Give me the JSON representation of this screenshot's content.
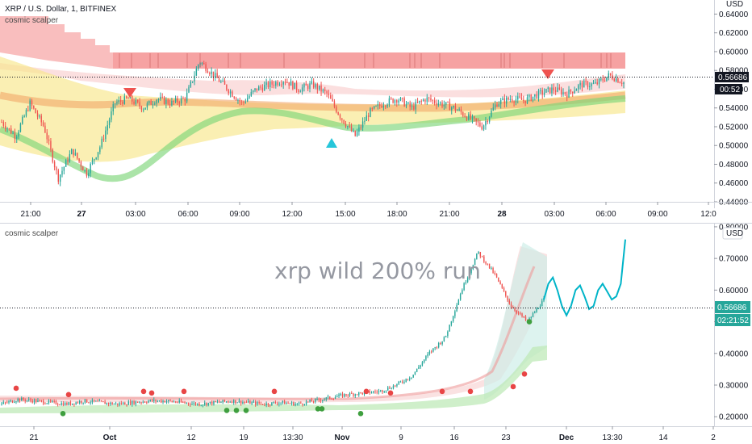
{
  "top_panel": {
    "symbol_title": "XRP / U.S. Dollar, 1, BITFINEX",
    "indicator_name": "cosmic scalper",
    "currency": "USD",
    "price_label": "0.56686",
    "countdown_label": "00:52"
  },
  "bottom_panel": {
    "indicator_name": "cosmic scalper",
    "currency": "USD",
    "annotation": "xrp wild 200% run",
    "price_label": "0.56686",
    "countdown_label": "02:21:52"
  },
  "colors": {
    "up": "#26a69a",
    "down": "#ef5350",
    "red_band": "#f48a8a",
    "yellow_band": "#f6e27a",
    "green_band": "#7ed67a",
    "orange_ma": "#f0a060",
    "projection": "#00b4c8",
    "text": "#131722",
    "grid_border": "#e0e3eb"
  },
  "chart_data": [
    {
      "type": "candlestick",
      "title": "XRP / U.S. Dollar, 1, BITFINEX",
      "ylim": [
        0.44,
        0.655
      ],
      "y_ticks": [
        "0.64000",
        "0.62000",
        "0.60000",
        "0.58000",
        "0.56000",
        "0.54000",
        "0.52000",
        "0.50000",
        "0.48000",
        "0.46000",
        "0.44000"
      ],
      "x_ticks": [
        {
          "label": "21:00",
          "bold": false
        },
        {
          "label": "27",
          "bold": true
        },
        {
          "label": "03:00",
          "bold": false
        },
        {
          "label": "06:00",
          "bold": false
        },
        {
          "label": "09:00",
          "bold": false
        },
        {
          "label": "12:00",
          "bold": false
        },
        {
          "label": "15:00",
          "bold": false
        },
        {
          "label": "18:00",
          "bold": false
        },
        {
          "label": "21:00",
          "bold": false
        },
        {
          "label": "28",
          "bold": true
        },
        {
          "label": "03:00",
          "bold": false
        },
        {
          "label": "06:00",
          "bold": false
        },
        {
          "label": "09:00",
          "bold": false
        },
        {
          "label": "12:0",
          "bold": false
        }
      ],
      "price_path": [
        0.525,
        0.51,
        0.545,
        0.52,
        0.465,
        0.495,
        0.47,
        0.5,
        0.545,
        0.55,
        0.54,
        0.55,
        0.545,
        0.55,
        0.59,
        0.575,
        0.56,
        0.545,
        0.56,
        0.565,
        0.57,
        0.56,
        0.565,
        0.555,
        0.53,
        0.51,
        0.535,
        0.545,
        0.55,
        0.54,
        0.55,
        0.545,
        0.54,
        0.53,
        0.52,
        0.545,
        0.55,
        0.548,
        0.555,
        0.56,
        0.555,
        0.565,
        0.565,
        0.575,
        0.567
      ],
      "band_upper": [
        0.6,
        0.595,
        0.59,
        0.585,
        0.58,
        0.575,
        0.57,
        0.567,
        0.565,
        0.563,
        0.562,
        0.561,
        0.56,
        0.559,
        0.558,
        0.558,
        0.557,
        0.556,
        0.555,
        0.555,
        0.556,
        0.556,
        0.557,
        0.557,
        0.558,
        0.56,
        0.565
      ],
      "band_lower": [
        0.5,
        0.495,
        0.49,
        0.485,
        0.48,
        0.478,
        0.478,
        0.48,
        0.485,
        0.49,
        0.495,
        0.5,
        0.505,
        0.51,
        0.515,
        0.52,
        0.522,
        0.524,
        0.526,
        0.527,
        0.528,
        0.53,
        0.531,
        0.532,
        0.533,
        0.534,
        0.535
      ],
      "sell_markers": [
        0.56,
        0.575
      ],
      "buy_markers": [
        0.5
      ]
    },
    {
      "type": "candlestick",
      "ylim": [
        0.17,
        0.81
      ],
      "y_ticks": [
        "0.80000",
        "0.70000",
        "0.60000",
        "0.50000",
        "0.40000",
        "0.30000",
        "0.20000"
      ],
      "x_ticks": [
        {
          "label": "21",
          "bold": false
        },
        {
          "label": "Oct",
          "bold": true
        },
        {
          "label": "12",
          "bold": false
        },
        {
          "label": "19",
          "bold": false
        },
        {
          "label": "13:30",
          "bold": false
        },
        {
          "label": "Nov",
          "bold": true
        },
        {
          "label": "9",
          "bold": false
        },
        {
          "label": "16",
          "bold": false
        },
        {
          "label": "23",
          "bold": false
        },
        {
          "label": "Dec",
          "bold": true
        },
        {
          "label": "13:30",
          "bold": false
        },
        {
          "label": "14",
          "bold": false
        },
        {
          "label": "2",
          "bold": false
        }
      ],
      "price_path": [
        0.24,
        0.255,
        0.25,
        0.245,
        0.24,
        0.25,
        0.245,
        0.24,
        0.245,
        0.25,
        0.25,
        0.245,
        0.24,
        0.245,
        0.25,
        0.245,
        0.24,
        0.245,
        0.24,
        0.25,
        0.26,
        0.27,
        0.275,
        0.28,
        0.3,
        0.33,
        0.4,
        0.45,
        0.6,
        0.72,
        0.65,
        0.55,
        0.5,
        0.57
      ],
      "projection_path": [
        0.57,
        0.62,
        0.64,
        0.6,
        0.55,
        0.52,
        0.55,
        0.6,
        0.615,
        0.58,
        0.54,
        0.55,
        0.6,
        0.62,
        0.595,
        0.57,
        0.58,
        0.62,
        0.76
      ],
      "red_dots": [
        0.29,
        0.27,
        0.28,
        0.275,
        0.28,
        0.28,
        0.28,
        0.275,
        0.28,
        0.28,
        0.295,
        0.335
      ],
      "green_dots": [
        0.21,
        0.22,
        0.22,
        0.22,
        0.225,
        0.225,
        0.21,
        0.5
      ]
    }
  ]
}
